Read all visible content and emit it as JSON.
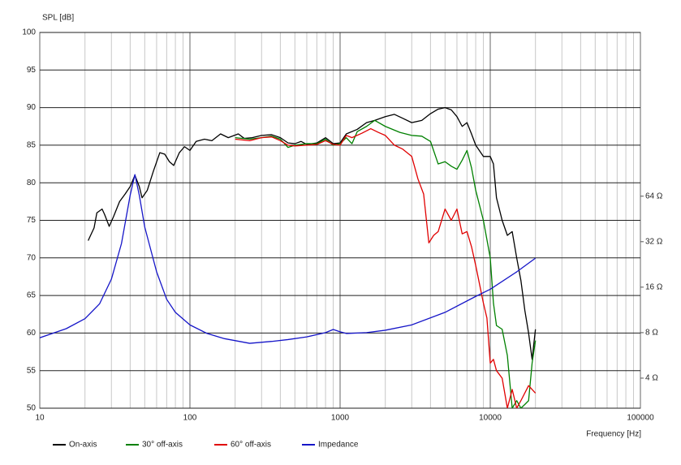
{
  "chart_data": {
    "type": "line",
    "y_label": "SPL [dB]",
    "x_label": "Frequency [Hz]",
    "xscale": "log",
    "y2scale": "log",
    "grid": true,
    "legend": "bottom",
    "xlim": [
      10,
      100000
    ],
    "xticks": [
      10,
      100,
      1000,
      10000,
      100000
    ],
    "xminorticks": [
      20,
      30,
      40,
      50,
      60,
      70,
      80,
      90,
      200,
      300,
      400,
      500,
      600,
      700,
      800,
      900,
      2000,
      3000,
      4000,
      5000,
      6000,
      7000,
      8000,
      9000,
      20000,
      30000,
      40000,
      50000,
      60000,
      70000,
      80000,
      90000
    ],
    "ylim": [
      50,
      100
    ],
    "yticks": [
      50,
      55,
      60,
      65,
      70,
      75,
      80,
      85,
      90,
      95,
      100
    ],
    "y2lim": [
      2.53,
      776
    ],
    "y2ticks": [
      {
        "value": 4,
        "label": "4 Ω"
      },
      {
        "value": 8,
        "label": "8 Ω"
      },
      {
        "value": 16,
        "label": "16 Ω"
      },
      {
        "value": 32,
        "label": "32 Ω"
      },
      {
        "value": 64,
        "label": "64 Ω"
      }
    ],
    "series": [
      {
        "name": "On-axis",
        "color": "#000000",
        "x": [
          21,
          23,
          24,
          26,
          27,
          29,
          31,
          34,
          37,
          40,
          43,
          46,
          48,
          52,
          57,
          63,
          68,
          73,
          78,
          85,
          92,
          100,
          110,
          125,
          140,
          160,
          180,
          210,
          230,
          260,
          300,
          350,
          400,
          450,
          500,
          550,
          600,
          700,
          800,
          900,
          1000,
          1100,
          1300,
          1500,
          1700,
          2000,
          2300,
          2600,
          3000,
          3500,
          4000,
          4500,
          5000,
          5500,
          6000,
          6500,
          7000,
          7500,
          8000,
          9000,
          10000,
          10500,
          11000,
          12000,
          13000,
          14000,
          15000,
          16000,
          17000,
          18000,
          19000,
          20000
        ],
        "values": [
          72.3,
          74,
          76,
          76.5,
          75.8,
          74.2,
          75.5,
          77.5,
          78.5,
          79.5,
          81,
          79.5,
          78,
          79,
          81.5,
          84,
          83.8,
          82.8,
          82.3,
          84,
          84.8,
          84.3,
          85.5,
          85.8,
          85.6,
          86.5,
          86,
          86.5,
          85.9,
          86,
          86.3,
          86.4,
          86,
          85.3,
          85.2,
          85.5,
          85.1,
          85.3,
          86,
          85.2,
          85.3,
          86.5,
          87.1,
          88,
          88.3,
          88.8,
          89.1,
          88.6,
          88,
          88.3,
          89.2,
          89.8,
          90,
          89.7,
          88.8,
          87.5,
          88,
          86.5,
          85,
          83.5,
          83.5,
          82.5,
          78,
          75,
          73,
          73.5,
          70,
          67,
          63,
          60,
          56.5,
          60.5
        ]
      },
      {
        "name": "30° off-axis",
        "color": "#008000",
        "x": [
          200,
          250,
          300,
          350,
          400,
          450,
          500,
          600,
          700,
          800,
          900,
          1000,
          1100,
          1200,
          1300,
          1500,
          1700,
          2000,
          2500,
          3000,
          3500,
          4000,
          4500,
          5000,
          5500,
          6000,
          6500,
          7000,
          7500,
          8000,
          9000,
          10000,
          10500,
          11000,
          12000,
          13000,
          14000,
          15000,
          16000,
          17000,
          18000,
          19000,
          20000
        ],
        "values": [
          86,
          85.8,
          86,
          86.2,
          85.8,
          84.7,
          85,
          85.2,
          85.2,
          85.8,
          85,
          85.2,
          86,
          85.2,
          86.8,
          87.5,
          88.3,
          87.5,
          86.7,
          86.3,
          86.2,
          85.5,
          82.5,
          82.8,
          82.2,
          81.8,
          83,
          84.3,
          82,
          79,
          75,
          70,
          64,
          61,
          60.5,
          57,
          50,
          51,
          50,
          50.5,
          51,
          56,
          59
        ]
      },
      {
        "name": "60° off-axis",
        "color": "#e00000",
        "x": [
          200,
          250,
          300,
          350,
          400,
          450,
          500,
          600,
          700,
          800,
          900,
          1000,
          1100,
          1200,
          1400,
          1600,
          1800,
          2000,
          2300,
          2600,
          3000,
          3300,
          3600,
          3900,
          4200,
          4500,
          5000,
          5500,
          6000,
          6500,
          7000,
          7500,
          8000,
          9000,
          9500,
          10000,
          10500,
          11000,
          12000,
          13000,
          14000,
          15000,
          16000,
          18000,
          20000
        ],
        "values": [
          85.8,
          85.6,
          86,
          86.1,
          85.6,
          85,
          84.9,
          85,
          85.1,
          85.6,
          85.1,
          85,
          86.3,
          86,
          86.6,
          87.2,
          86.7,
          86.3,
          85,
          84.5,
          83.5,
          80.5,
          78.5,
          72,
          73,
          73.5,
          76.5,
          75,
          76.5,
          73.2,
          73.5,
          71.5,
          69,
          64,
          62,
          56,
          56.5,
          55,
          54,
          50,
          52.5,
          50,
          51,
          53,
          52
        ]
      },
      {
        "name": "Impedance",
        "color": "#1515c8",
        "axis": "y2",
        "x": [
          10,
          15,
          20,
          25,
          30,
          35,
          40,
          43,
          46,
          50,
          60,
          70,
          80,
          100,
          130,
          170,
          250,
          350,
          450,
          600,
          800,
          900,
          1000,
          1100,
          1500,
          2000,
          3000,
          5000,
          8000,
          10000,
          15000,
          20000
        ],
        "values": [
          7.4,
          8.5,
          9.9,
          12.4,
          18.1,
          31.1,
          65,
          89,
          65,
          40,
          20.2,
          13.3,
          10.9,
          9.0,
          7.9,
          7.3,
          6.8,
          7.0,
          7.2,
          7.5,
          8.0,
          8.4,
          8.1,
          7.9,
          8.0,
          8.3,
          9.0,
          10.9,
          13.9,
          15.5,
          20.2,
          24.9
        ]
      }
    ]
  }
}
